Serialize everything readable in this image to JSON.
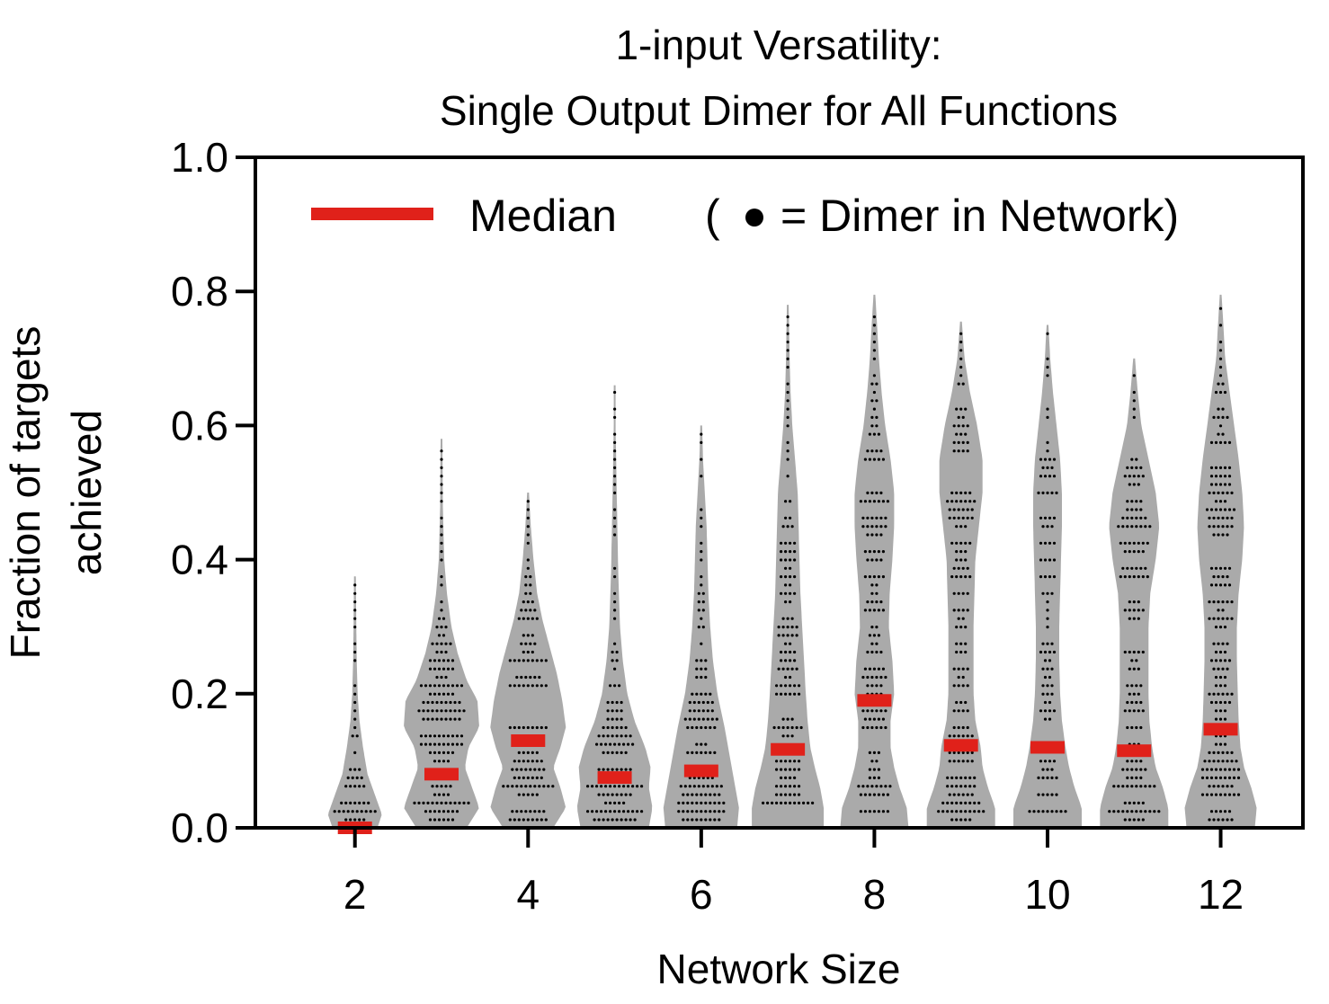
{
  "chart_data": {
    "type": "violin",
    "title_line1": "1-input Versatility:",
    "title_line2": "Single Output Dimer for All Functions",
    "xlabel": "Network Size",
    "ylabel_line1": "Fraction of targets",
    "ylabel_line2": "achieved",
    "xlim": [
      0.85,
      12.95
    ],
    "ylim": [
      0,
      1.0
    ],
    "x_ticks": [
      2,
      4,
      6,
      8,
      10,
      12
    ],
    "y_ticks": [
      0.0,
      0.2,
      0.4,
      0.6,
      0.8,
      1.0
    ],
    "x_tick_labels": [
      "2",
      "4",
      "6",
      "8",
      "10",
      "12"
    ],
    "y_tick_labels": [
      "0.0",
      "0.2",
      "0.4",
      "0.6",
      "0.8",
      "1.0"
    ],
    "legend": {
      "median_label": "Median",
      "dot_note_open": "(",
      "dot_note_text": "= Dimer in Network)",
      "placement": "top"
    },
    "colors": {
      "violin": "#aaaaaa",
      "median": "#e0211a",
      "dots": "#000000",
      "axes": "#000000"
    },
    "series": [
      {
        "x": 2,
        "min": 0.0,
        "max": 0.375,
        "median": 0.0,
        "profile": [
          [
            0.0,
            25
          ],
          [
            0.02,
            30
          ],
          [
            0.05,
            22
          ],
          [
            0.08,
            14
          ],
          [
            0.12,
            9
          ],
          [
            0.16,
            5
          ],
          [
            0.2,
            3
          ],
          [
            0.25,
            2
          ],
          [
            0.3,
            1.5
          ],
          [
            0.375,
            1
          ]
        ]
      },
      {
        "x": 3,
        "min": 0.0,
        "max": 0.58,
        "median": 0.08,
        "profile": [
          [
            0.0,
            28
          ],
          [
            0.03,
            42
          ],
          [
            0.06,
            34
          ],
          [
            0.09,
            26
          ],
          [
            0.12,
            30
          ],
          [
            0.15,
            42
          ],
          [
            0.19,
            40
          ],
          [
            0.22,
            28
          ],
          [
            0.26,
            18
          ],
          [
            0.3,
            11
          ],
          [
            0.35,
            6
          ],
          [
            0.4,
            3
          ],
          [
            0.48,
            1.5
          ],
          [
            0.58,
            1
          ]
        ]
      },
      {
        "x": 4,
        "min": 0.0,
        "max": 0.5,
        "median": 0.13,
        "profile": [
          [
            0.0,
            28
          ],
          [
            0.03,
            42
          ],
          [
            0.06,
            36
          ],
          [
            0.09,
            28
          ],
          [
            0.12,
            36
          ],
          [
            0.15,
            42
          ],
          [
            0.19,
            38
          ],
          [
            0.23,
            32
          ],
          [
            0.27,
            24
          ],
          [
            0.31,
            16
          ],
          [
            0.35,
            10
          ],
          [
            0.4,
            6
          ],
          [
            0.45,
            3
          ],
          [
            0.5,
            1
          ]
        ]
      },
      {
        "x": 5,
        "min": 0.0,
        "max": 0.66,
        "median": 0.075,
        "profile": [
          [
            0.0,
            38
          ],
          [
            0.03,
            42
          ],
          [
            0.06,
            38
          ],
          [
            0.09,
            40
          ],
          [
            0.12,
            34
          ],
          [
            0.16,
            22
          ],
          [
            0.2,
            14
          ],
          [
            0.25,
            9
          ],
          [
            0.3,
            6
          ],
          [
            0.38,
            4
          ],
          [
            0.45,
            3
          ],
          [
            0.52,
            2
          ],
          [
            0.6,
            1
          ],
          [
            0.66,
            1
          ]
        ]
      },
      {
        "x": 6,
        "min": 0.0,
        "max": 0.6,
        "median": 0.085,
        "profile": [
          [
            0.0,
            40
          ],
          [
            0.03,
            42
          ],
          [
            0.06,
            38
          ],
          [
            0.09,
            34
          ],
          [
            0.12,
            30
          ],
          [
            0.15,
            26
          ],
          [
            0.2,
            18
          ],
          [
            0.25,
            13
          ],
          [
            0.3,
            10
          ],
          [
            0.35,
            8
          ],
          [
            0.4,
            7
          ],
          [
            0.45,
            6
          ],
          [
            0.5,
            4
          ],
          [
            0.55,
            2
          ],
          [
            0.6,
            1
          ]
        ]
      },
      {
        "x": 7,
        "min": 0.0,
        "max": 0.78,
        "median": 0.117,
        "profile": [
          [
            0.0,
            40
          ],
          [
            0.03,
            40
          ],
          [
            0.06,
            36
          ],
          [
            0.09,
            30
          ],
          [
            0.12,
            25
          ],
          [
            0.16,
            22
          ],
          [
            0.2,
            20
          ],
          [
            0.25,
            18
          ],
          [
            0.3,
            16
          ],
          [
            0.35,
            14
          ],
          [
            0.4,
            13
          ],
          [
            0.45,
            12
          ],
          [
            0.5,
            11
          ],
          [
            0.55,
            8
          ],
          [
            0.6,
            5
          ],
          [
            0.65,
            3
          ],
          [
            0.7,
            2
          ],
          [
            0.78,
            1
          ]
        ]
      },
      {
        "x": 8,
        "min": 0.0,
        "max": 0.795,
        "median": 0.19,
        "profile": [
          [
            0.0,
            38
          ],
          [
            0.03,
            36
          ],
          [
            0.06,
            28
          ],
          [
            0.09,
            22
          ],
          [
            0.12,
            18
          ],
          [
            0.16,
            18
          ],
          [
            0.2,
            22
          ],
          [
            0.25,
            20
          ],
          [
            0.3,
            16
          ],
          [
            0.35,
            17
          ],
          [
            0.4,
            20
          ],
          [
            0.45,
            22
          ],
          [
            0.5,
            22
          ],
          [
            0.55,
            18
          ],
          [
            0.6,
            12
          ],
          [
            0.65,
            8
          ],
          [
            0.7,
            5
          ],
          [
            0.75,
            3
          ],
          [
            0.795,
            1
          ]
        ]
      },
      {
        "x": 9,
        "min": 0.0,
        "max": 0.755,
        "median": 0.123,
        "profile": [
          [
            0.0,
            38
          ],
          [
            0.03,
            38
          ],
          [
            0.06,
            30
          ],
          [
            0.09,
            24
          ],
          [
            0.12,
            22
          ],
          [
            0.16,
            16
          ],
          [
            0.2,
            14
          ],
          [
            0.25,
            14
          ],
          [
            0.3,
            14
          ],
          [
            0.35,
            15
          ],
          [
            0.4,
            16
          ],
          [
            0.45,
            20
          ],
          [
            0.5,
            24
          ],
          [
            0.55,
            24
          ],
          [
            0.6,
            18
          ],
          [
            0.65,
            10
          ],
          [
            0.7,
            4
          ],
          [
            0.755,
            1
          ]
        ]
      },
      {
        "x": 10,
        "min": 0.0,
        "max": 0.75,
        "median": 0.12,
        "profile": [
          [
            0.0,
            38
          ],
          [
            0.03,
            38
          ],
          [
            0.06,
            30
          ],
          [
            0.09,
            24
          ],
          [
            0.12,
            20
          ],
          [
            0.16,
            16
          ],
          [
            0.2,
            14
          ],
          [
            0.25,
            13
          ],
          [
            0.3,
            13
          ],
          [
            0.35,
            14
          ],
          [
            0.4,
            15
          ],
          [
            0.45,
            16
          ],
          [
            0.5,
            16
          ],
          [
            0.55,
            14
          ],
          [
            0.6,
            10
          ],
          [
            0.65,
            6
          ],
          [
            0.7,
            3
          ],
          [
            0.75,
            1
          ]
        ]
      },
      {
        "x": 11,
        "min": 0.0,
        "max": 0.7,
        "median": 0.115,
        "profile": [
          [
            0.0,
            38
          ],
          [
            0.03,
            38
          ],
          [
            0.06,
            32
          ],
          [
            0.09,
            24
          ],
          [
            0.12,
            20
          ],
          [
            0.16,
            17
          ],
          [
            0.2,
            16
          ],
          [
            0.25,
            16
          ],
          [
            0.3,
            16
          ],
          [
            0.35,
            18
          ],
          [
            0.4,
            24
          ],
          [
            0.45,
            28
          ],
          [
            0.5,
            24
          ],
          [
            0.55,
            16
          ],
          [
            0.6,
            8
          ],
          [
            0.65,
            4
          ],
          [
            0.7,
            1
          ]
        ]
      },
      {
        "x": 12,
        "min": 0.0,
        "max": 0.795,
        "median": 0.147,
        "profile": [
          [
            0.0,
            38
          ],
          [
            0.03,
            40
          ],
          [
            0.06,
            34
          ],
          [
            0.09,
            26
          ],
          [
            0.12,
            22
          ],
          [
            0.16,
            20
          ],
          [
            0.2,
            19
          ],
          [
            0.25,
            18
          ],
          [
            0.3,
            18
          ],
          [
            0.35,
            20
          ],
          [
            0.4,
            24
          ],
          [
            0.45,
            26
          ],
          [
            0.5,
            24
          ],
          [
            0.55,
            20
          ],
          [
            0.6,
            15
          ],
          [
            0.65,
            10
          ],
          [
            0.7,
            5
          ],
          [
            0.75,
            3
          ],
          [
            0.795,
            1
          ]
        ]
      }
    ]
  }
}
